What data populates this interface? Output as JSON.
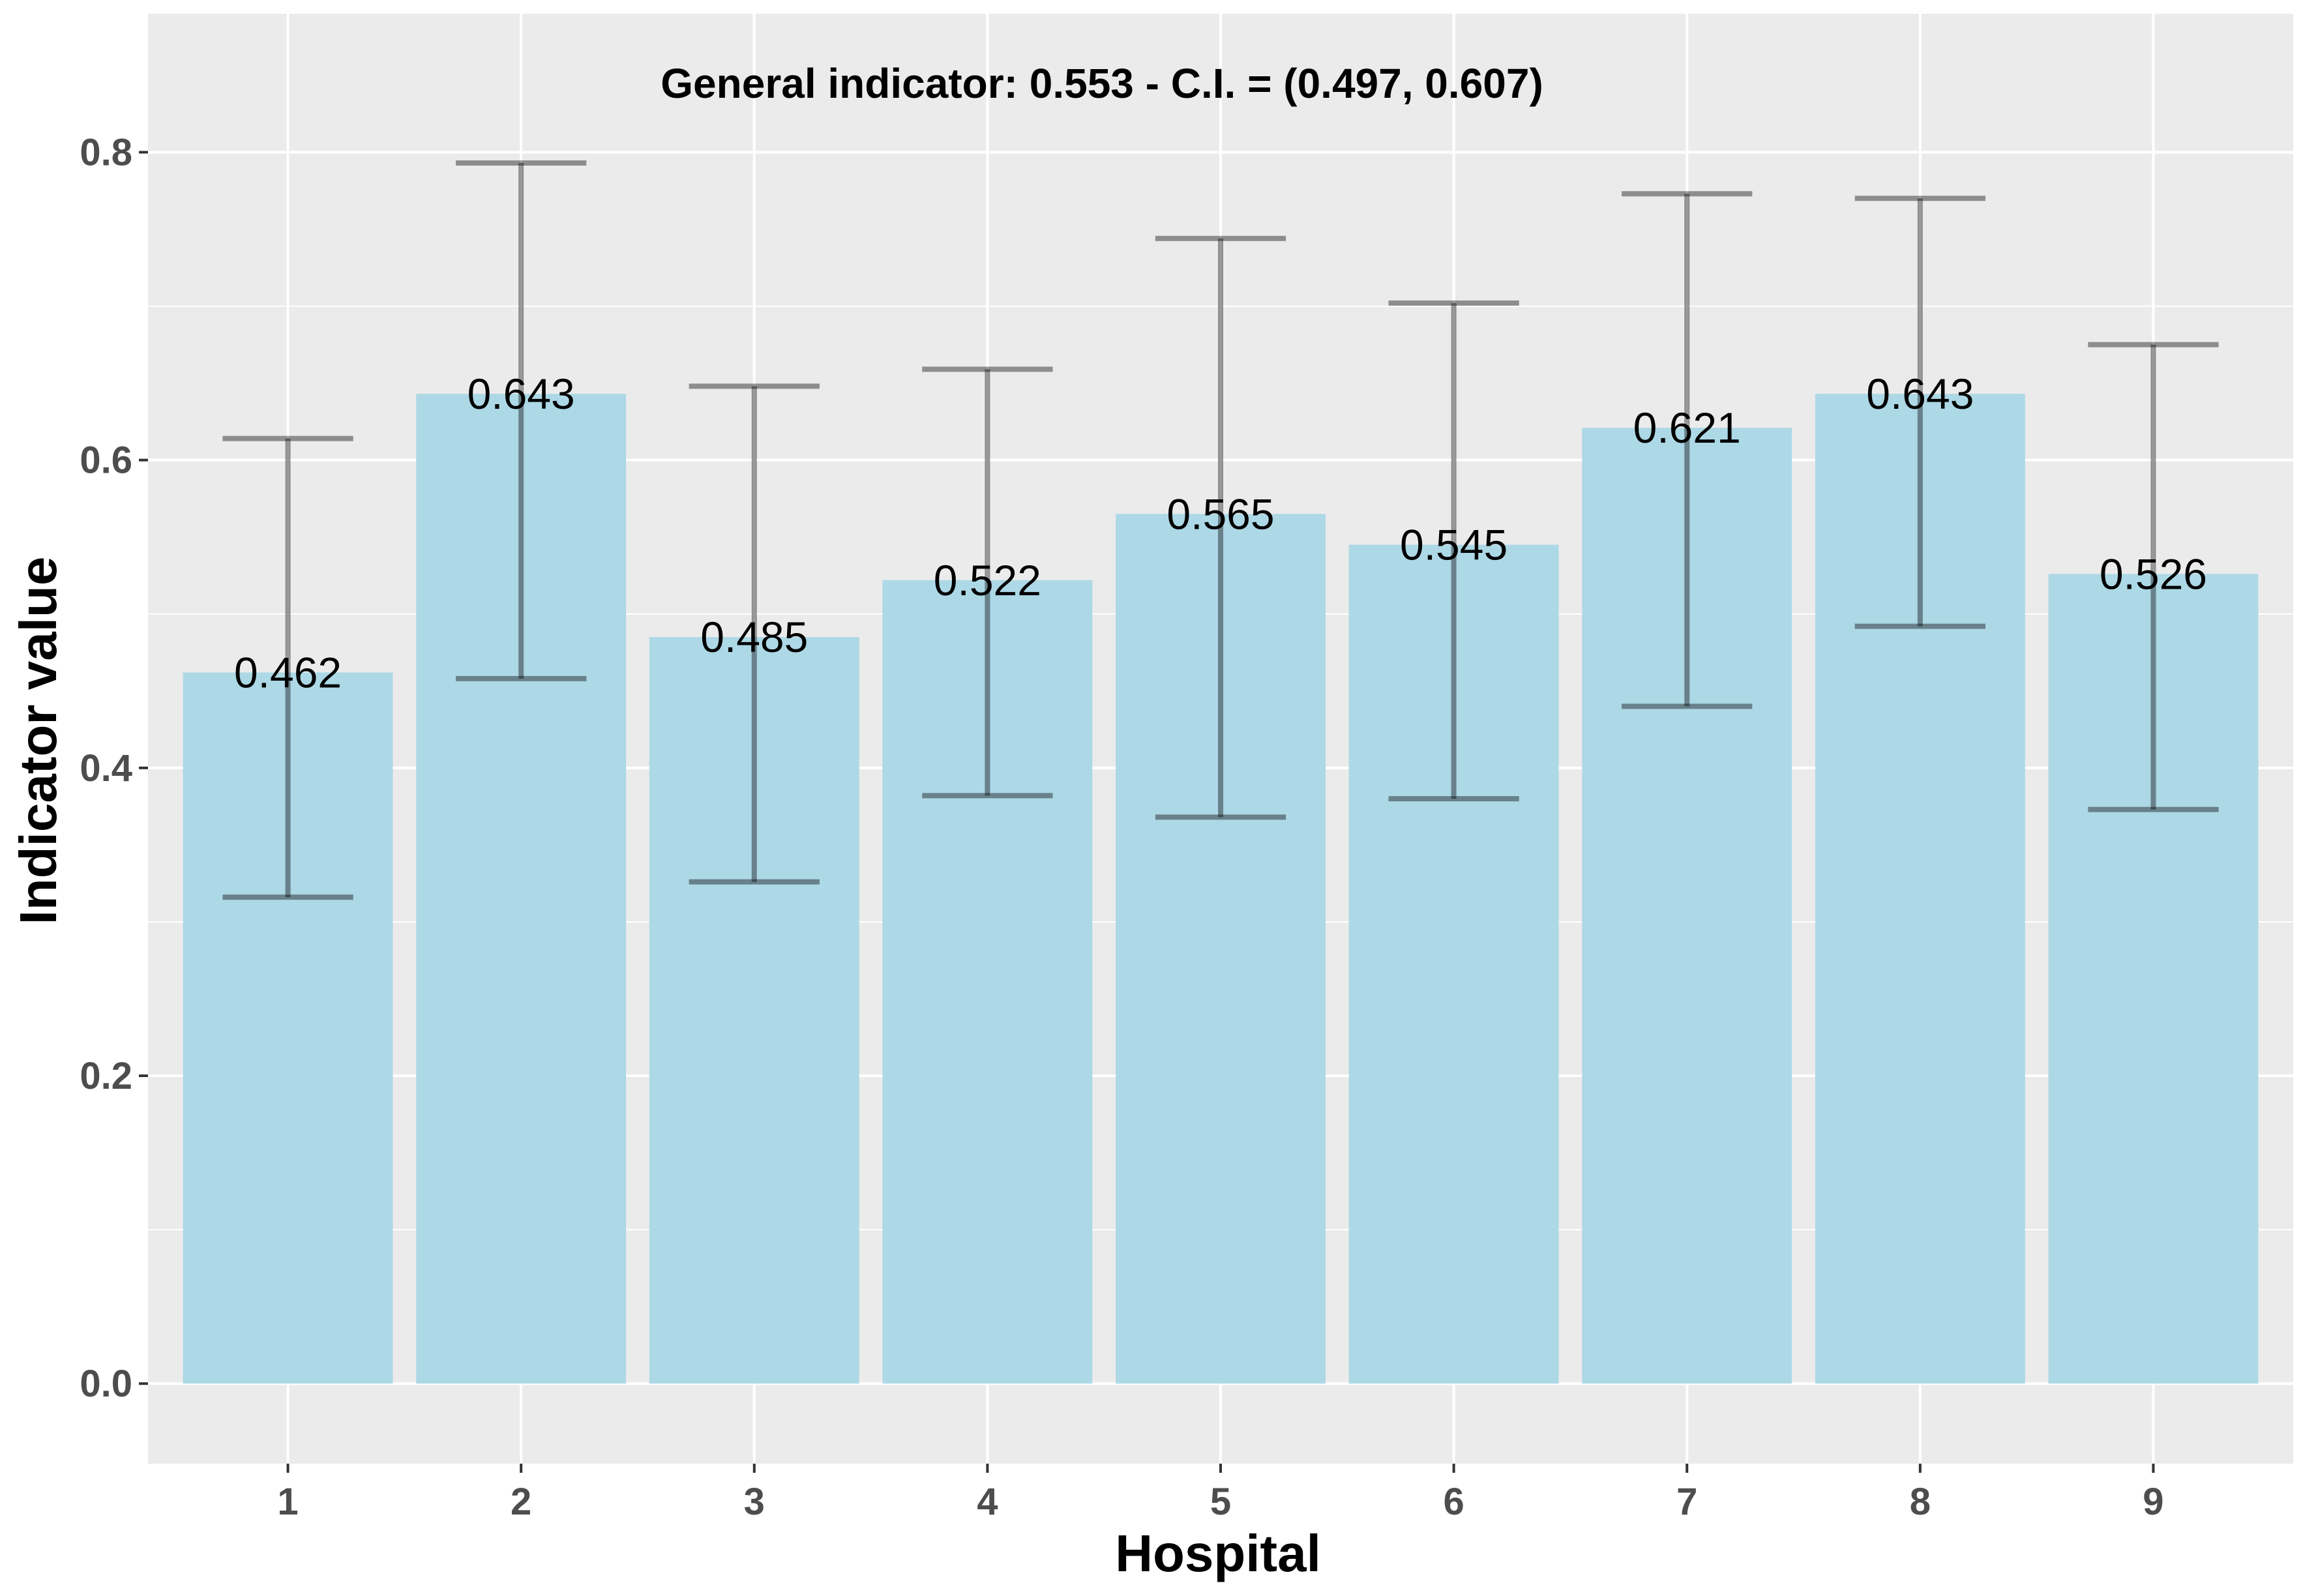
{
  "chart_data": {
    "type": "bar",
    "title": "",
    "annotation": "General indicator: 0.553 - C.I. = (0.497, 0.607)",
    "xlabel": "Hospital",
    "ylabel": "Indicator value",
    "categories": [
      "1",
      "2",
      "3",
      "4",
      "5",
      "6",
      "7",
      "8",
      "9"
    ],
    "values": [
      0.462,
      0.643,
      0.485,
      0.522,
      0.565,
      0.545,
      0.621,
      0.643,
      0.526
    ],
    "value_labels": [
      "0.462",
      "0.643",
      "0.485",
      "0.522",
      "0.565",
      "0.545",
      "0.621",
      "0.643",
      "0.526"
    ],
    "ci_lower": [
      0.316,
      0.458,
      0.326,
      0.382,
      0.368,
      0.38,
      0.44,
      0.492,
      0.373
    ],
    "ci_upper": [
      0.614,
      0.793,
      0.648,
      0.659,
      0.744,
      0.702,
      0.773,
      0.77,
      0.675
    ],
    "ylim": [
      -0.052,
      0.89
    ],
    "yticks": [
      0.0,
      0.2,
      0.4,
      0.6,
      0.8
    ],
    "ytick_labels": [
      "0.0",
      "0.2",
      "0.4",
      "0.6",
      "0.8"
    ],
    "grid": true,
    "legend": "none",
    "colors": {
      "bar_fill": "#add8e6",
      "panel_background": "#ebebeb",
      "gridline": "#ffffff",
      "error_bar": "#000000",
      "tick_label": "#4d4d4d"
    }
  }
}
